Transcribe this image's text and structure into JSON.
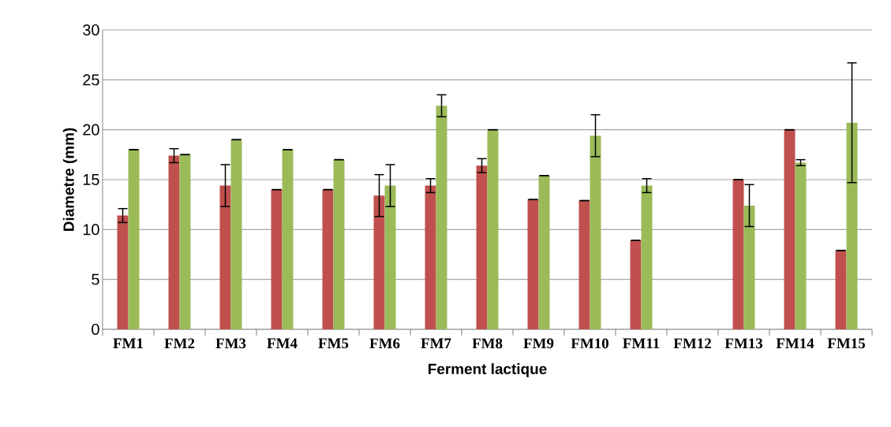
{
  "chart_data": {
    "type": "bar",
    "xlabel": "Ferment lactique",
    "ylabel": "Diametre (mm)",
    "categories": [
      "FM1",
      "FM2",
      "FM3",
      "FM4",
      "FM5",
      "FM6",
      "FM7",
      "FM8",
      "FM9",
      "FM10",
      "FM11",
      "FM12",
      "FM13",
      "FM14",
      "FM15"
    ],
    "series": [
      {
        "color": "#c0504d",
        "values": [
          11.4,
          17.4,
          14.4,
          14,
          14,
          13.4,
          14.4,
          16.4,
          13,
          12.9,
          8.9,
          null,
          15,
          20,
          7.9
        ],
        "errors": [
          0.7,
          0.7,
          2.1,
          0,
          0,
          2.1,
          0.7,
          0.7,
          0,
          0,
          0,
          null,
          0,
          0,
          0
        ]
      },
      {
        "color": "#9bbb59",
        "values": [
          18,
          17.5,
          19,
          18,
          17,
          14.4,
          22.4,
          20,
          15.4,
          19.4,
          14.4,
          null,
          12.4,
          16.7,
          20.7
        ],
        "errors": [
          0,
          0,
          0,
          0,
          0,
          2.1,
          1.1,
          0,
          0,
          2.1,
          0.7,
          null,
          2.1,
          0.3,
          6
        ]
      }
    ],
    "ylim": [
      0,
      30
    ],
    "yticks": [
      0,
      5,
      10,
      15,
      20,
      25,
      30
    ],
    "grid": "y"
  }
}
